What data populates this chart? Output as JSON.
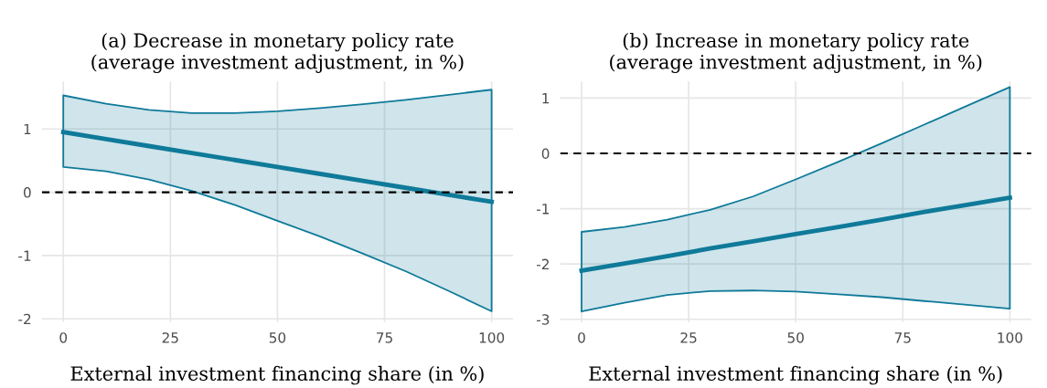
{
  "chart_data": [
    {
      "type": "line",
      "title": "(a) Decrease in monetary policy rate\n(average investment adjustment, in %)",
      "xlabel": "External investment financing share (in %)",
      "x": [
        0,
        10,
        20,
        30,
        40,
        50,
        60,
        70,
        80,
        90,
        100
      ],
      "series": [
        {
          "color": "#0f7a99",
          "values": [
            0.95,
            0.84,
            0.73,
            0.62,
            0.51,
            0.4,
            0.29,
            0.18,
            0.07,
            -0.04,
            -0.15
          ],
          "lower": [
            0.4,
            0.33,
            0.2,
            0.02,
            -0.2,
            -0.45,
            -0.7,
            -0.97,
            -1.25,
            -1.56,
            -1.88
          ],
          "upper": [
            1.53,
            1.4,
            1.3,
            1.25,
            1.25,
            1.28,
            1.33,
            1.39,
            1.46,
            1.54,
            1.62
          ]
        }
      ],
      "xlim": [
        -5,
        105
      ],
      "xticks": [
        0,
        25,
        50,
        75,
        100
      ],
      "ylim": [
        -2.05,
        1.75
      ],
      "yticks": [
        -2,
        -1,
        0,
        1
      ],
      "ref_lines": [
        {
          "axis": "y",
          "value": 0,
          "color": "#000000",
          "line_style": "dashed"
        }
      ],
      "grid": true,
      "legend": false
    },
    {
      "type": "line",
      "title": "(b) Increase in monetary policy rate\n(average investment adjustment, in %)",
      "xlabel": "External investment financing share (in %)",
      "x": [
        0,
        10,
        20,
        30,
        40,
        50,
        60,
        70,
        80,
        90,
        100
      ],
      "series": [
        {
          "color": "#0f7a99",
          "values": [
            -2.12,
            -1.99,
            -1.86,
            -1.72,
            -1.59,
            -1.46,
            -1.33,
            -1.2,
            -1.06,
            -0.93,
            -0.8
          ],
          "lower": [
            -2.86,
            -2.7,
            -2.56,
            -2.49,
            -2.48,
            -2.5,
            -2.55,
            -2.6,
            -2.67,
            -2.74,
            -2.81
          ],
          "upper": [
            -1.42,
            -1.33,
            -1.2,
            -1.02,
            -0.78,
            -0.47,
            -0.15,
            0.18,
            0.52,
            0.86,
            1.2
          ]
        }
      ],
      "xlim": [
        -5,
        105
      ],
      "xticks": [
        0,
        25,
        50,
        75,
        100
      ],
      "ylim": [
        -3.05,
        1.3
      ],
      "yticks": [
        -3,
        -2,
        -1,
        0,
        1
      ],
      "ref_lines": [
        {
          "axis": "y",
          "value": 0,
          "color": "#000000",
          "line_style": "dashed"
        }
      ],
      "grid": true,
      "legend": false
    }
  ]
}
